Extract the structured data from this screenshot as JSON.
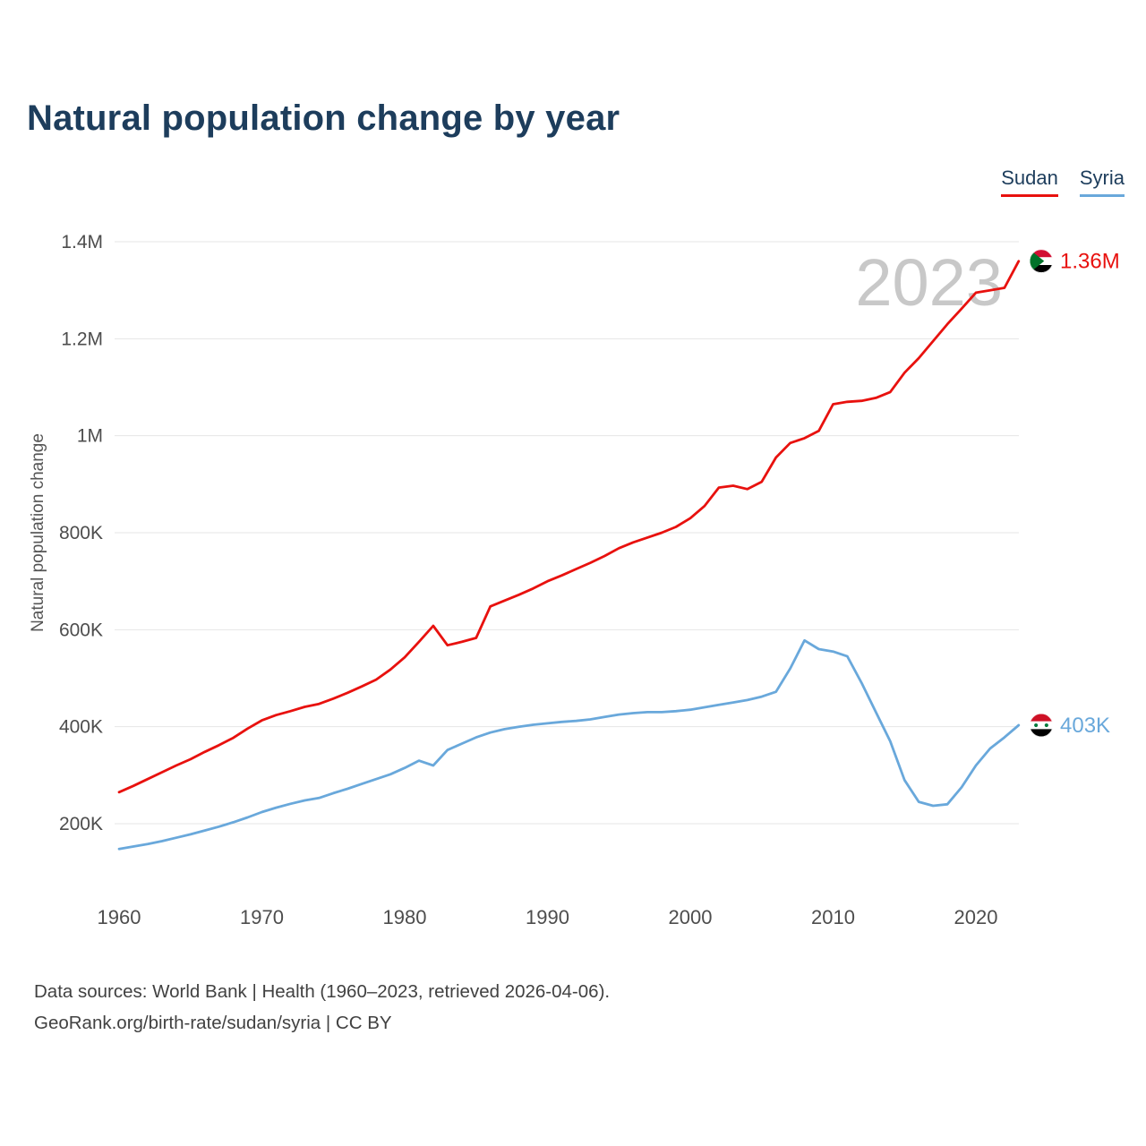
{
  "page": {
    "title": "Natural population change by year",
    "watermark": "2023",
    "footer_line1": "Data sources: World Bank | Health (1960–2023, retrieved 2026-04-06).",
    "footer_line2": "GeoRank.org/birth-rate/sudan/syria | CC BY"
  },
  "legend": {
    "items": [
      {
        "label": "Sudan",
        "color": "#e8110e"
      },
      {
        "label": "Syria",
        "color": "#69a8db"
      }
    ]
  },
  "colors": {
    "title": "#1d3d5c",
    "gridline": "#e6e6e6",
    "tick_text": "#4d4d4d",
    "axis_title": "#555555",
    "watermark": "#c8c8c8",
    "sudan_red": "#e8110e",
    "syria_blue": "#69a8db"
  },
  "chart_data": {
    "type": "line",
    "title": "Natural population change by year",
    "xlabel": "",
    "ylabel": "Natural population change",
    "grid": true,
    "legend_position": "top-right",
    "x": [
      1960,
      1961,
      1962,
      1963,
      1964,
      1965,
      1966,
      1967,
      1968,
      1969,
      1970,
      1971,
      1972,
      1973,
      1974,
      1975,
      1976,
      1977,
      1978,
      1979,
      1980,
      1981,
      1982,
      1983,
      1984,
      1985,
      1986,
      1987,
      1988,
      1989,
      1990,
      1991,
      1992,
      1993,
      1994,
      1995,
      1996,
      1997,
      1998,
      1999,
      2000,
      2001,
      2002,
      2003,
      2004,
      2005,
      2006,
      2007,
      2008,
      2009,
      2010,
      2011,
      2012,
      2013,
      2014,
      2015,
      2016,
      2017,
      2018,
      2019,
      2020,
      2021,
      2022,
      2023
    ],
    "x_ticks": [
      1960,
      1970,
      1980,
      1990,
      2000,
      2010,
      2020
    ],
    "y_ticks": [
      {
        "value": 1400,
        "label": "1.4M"
      },
      {
        "value": 1200,
        "label": "1.2M"
      },
      {
        "value": 1000,
        "label": "1M"
      },
      {
        "value": 800,
        "label": "800K"
      },
      {
        "value": 600,
        "label": "600K"
      },
      {
        "value": 400,
        "label": "400K"
      },
      {
        "value": 200,
        "label": "200K"
      }
    ],
    "units": "thousands of people",
    "ylim_k": [
      100,
      1450
    ],
    "series": [
      {
        "name": "Sudan",
        "color": "#e8110e",
        "end_label": "1.36M",
        "flag": "sudan",
        "values": [
          265,
          278,
          292,
          306,
          320,
          333,
          348,
          362,
          377,
          396,
          413,
          424,
          432,
          441,
          447,
          458,
          470,
          483,
          497,
          518,
          543,
          575,
          608,
          568,
          575,
          583,
          648,
          660,
          672,
          685,
          700,
          712,
          725,
          738,
          752,
          768,
          780,
          790,
          800,
          812,
          830,
          855,
          893,
          897,
          890,
          905,
          955,
          985,
          995,
          1010,
          1065,
          1070,
          1072,
          1078,
          1090,
          1130,
          1160,
          1195,
          1230,
          1262,
          1295,
          1300,
          1305,
          1360
        ]
      },
      {
        "name": "Syria",
        "color": "#69a8db",
        "end_label": "403K",
        "flag": "syria",
        "values": [
          148,
          153,
          158,
          164,
          171,
          178,
          186,
          194,
          203,
          213,
          224,
          233,
          241,
          248,
          253,
          263,
          272,
          282,
          292,
          302,
          315,
          330,
          320,
          352,
          365,
          378,
          388,
          395,
          400,
          404,
          407,
          410,
          412,
          415,
          420,
          425,
          428,
          430,
          430,
          432,
          435,
          440,
          445,
          450,
          455,
          462,
          472,
          520,
          578,
          560,
          555,
          545,
          490,
          430,
          370,
          290,
          245,
          237,
          240,
          275,
          320,
          355,
          378,
          403
        ]
      }
    ]
  }
}
